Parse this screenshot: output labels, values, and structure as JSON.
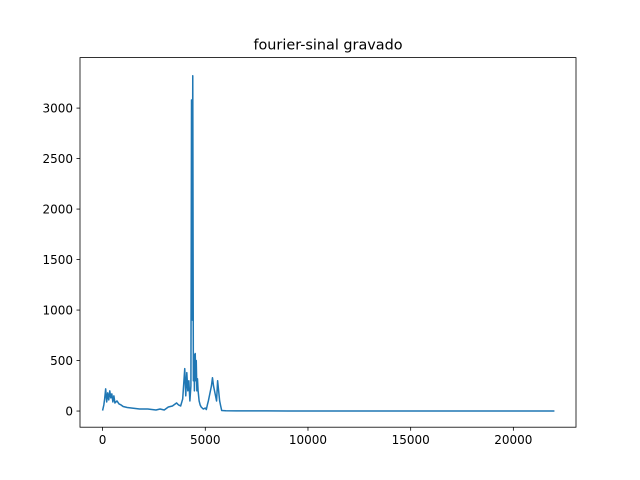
{
  "chart_data": {
    "type": "line",
    "title": "fourier-sinal gravado",
    "xlabel": "",
    "ylabel": "",
    "xlim": [
      -1100,
      23050
    ],
    "ylim": [
      -160,
      3500
    ],
    "x_ticks": [
      0,
      5000,
      10000,
      15000,
      20000
    ],
    "x_tick_labels": [
      "0",
      "5000",
      "10000",
      "15000",
      "20000"
    ],
    "y_ticks": [
      0,
      500,
      1000,
      1500,
      2000,
      2500,
      3000
    ],
    "y_tick_labels": [
      "0",
      "500",
      "1000",
      "1500",
      "2000",
      "2500",
      "3000"
    ],
    "grid": false,
    "series": [
      {
        "color": "#1f77b4",
        "x": [
          0,
          60,
          100,
          150,
          200,
          250,
          300,
          350,
          400,
          450,
          500,
          550,
          600,
          700,
          800,
          900,
          1000,
          1100,
          1200,
          1400,
          1600,
          1800,
          2000,
          2200,
          2400,
          2600,
          2800,
          3000,
          3200,
          3400,
          3600,
          3700,
          3800,
          3900,
          4000,
          4050,
          4100,
          4150,
          4200,
          4250,
          4300,
          4330,
          4360,
          4390,
          4420,
          4450,
          4470,
          4490,
          4510,
          4540,
          4560,
          4590,
          4620,
          4650,
          4700,
          4750,
          4800,
          4850,
          4900,
          4950,
          5000,
          5050,
          5100,
          5150,
          5200,
          5250,
          5300,
          5350,
          5400,
          5450,
          5500,
          5550,
          5600,
          5650,
          5700,
          5750,
          5800,
          6000,
          6500,
          7000,
          8000,
          9000,
          10000,
          11000,
          12000,
          13000,
          14000,
          15000,
          16000,
          17000,
          18000,
          19000,
          20000,
          21000,
          22000
        ],
        "y": [
          5,
          60,
          120,
          220,
          90,
          180,
          110,
          200,
          130,
          170,
          90,
          150,
          80,
          100,
          70,
          60,
          45,
          40,
          35,
          30,
          25,
          20,
          20,
          20,
          15,
          10,
          20,
          10,
          40,
          50,
          80,
          60,
          50,
          120,
          420,
          150,
          380,
          200,
          300,
          100,
          250,
          3080,
          900,
          3320,
          300,
          560,
          200,
          450,
          570,
          300,
          500,
          200,
          320,
          200,
          100,
          60,
          40,
          30,
          20,
          25,
          30,
          15,
          60,
          100,
          150,
          200,
          250,
          330,
          250,
          200,
          150,
          100,
          300,
          200,
          100,
          50,
          5,
          3,
          2,
          2,
          2,
          1,
          1,
          1,
          1,
          1,
          1,
          1,
          1,
          1,
          1,
          1,
          1,
          1,
          1
        ]
      }
    ]
  }
}
